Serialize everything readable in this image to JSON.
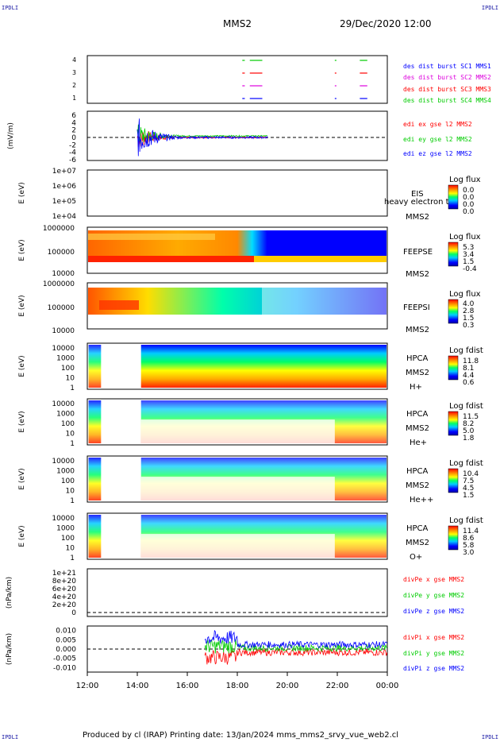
{
  "corners": {
    "tl": "IPDLI",
    "tr": "IPDLI",
    "bl": "IPDLI",
    "br": "IPDLI"
  },
  "header": {
    "spacecraft": "MMS2",
    "datetime": "29/Dec/2020 12:00"
  },
  "footer": {
    "text": "Produced by cl (IRAP)   Printing date: 13/Jan/2024   mms_mms2_srvy_vue_web2.cl"
  },
  "x_ticks": [
    "12:00",
    "14:00",
    "16:00",
    "18:00",
    "20:00",
    "22:00",
    "00:00"
  ],
  "colors": {
    "red": "#ff0000",
    "magenta": "#dd00dd",
    "green": "#00cc00",
    "blue": "#0000ff"
  },
  "chart_data": [
    {
      "type": "line",
      "panel": "burst",
      "yticks": [
        "1",
        "2",
        "3",
        "4"
      ],
      "series": [
        {
          "name": "des dist burst SC1 MMS1",
          "color": "green",
          "intervals": [
            [
              18.2,
              18.3
            ],
            [
              18.5,
              19.0
            ],
            [
              21.9,
              21.95
            ],
            [
              22.9,
              23.2
            ]
          ]
        },
        {
          "name": "des dist burst SC2 MMS2",
          "color": "red",
          "intervals": [
            [
              18.2,
              18.3
            ],
            [
              18.5,
              19.0
            ],
            [
              21.9,
              21.95
            ],
            [
              22.9,
              23.2
            ]
          ]
        },
        {
          "name": "des dist burst SC3 MMS3",
          "color": "magenta",
          "intervals": [
            [
              18.2,
              18.3
            ],
            [
              18.5,
              19.0
            ],
            [
              21.9,
              21.95
            ],
            [
              22.9,
              23.2
            ]
          ]
        },
        {
          "name": "des dist burst SC4 MMS4",
          "color": "blue",
          "intervals": [
            [
              18.2,
              18.3
            ],
            [
              18.5,
              19.0
            ],
            [
              21.9,
              21.95
            ],
            [
              22.9,
              23.2
            ]
          ]
        }
      ]
    },
    {
      "type": "line",
      "panel": "efield",
      "ylabel": "(mV/m)",
      "yticks": [
        "6",
        "4",
        "2",
        "0",
        "-2",
        "-4",
        "-6"
      ],
      "ylim": [
        -6,
        6
      ],
      "series": [
        {
          "name": "edi ex gse l2 MMS2",
          "color": "red"
        },
        {
          "name": "edi ey gse l2 MMS2",
          "color": "green"
        },
        {
          "name": "edi ez gse l2 MMS2",
          "color": "blue"
        }
      ],
      "active_range": [
        14.0,
        19.2
      ]
    },
    {
      "type": "heatmap",
      "panel": "eis",
      "ylabel": "E (eV)",
      "yticks": [
        "1e+07",
        "1e+06",
        "1e+05",
        "1e+04"
      ],
      "labels": [
        "EIS",
        "heavy electron tof",
        "MMS2"
      ],
      "cbar_title": "Log flux",
      "cbar_ticks": [
        "0.0",
        "0.0",
        "0.0",
        "0.0"
      ]
    },
    {
      "type": "heatmap",
      "panel": "feepse",
      "ylabel": "E (eV)",
      "yticks": [
        "1000000",
        "100000",
        "10000"
      ],
      "labels": [
        "FEEPSE",
        "MMS2"
      ],
      "cbar_title": "Log flux",
      "cbar_ticks": [
        "5.3",
        "3.4",
        "1.5",
        "-0.4"
      ]
    },
    {
      "type": "heatmap",
      "panel": "feepsi",
      "ylabel": "E (eV)",
      "yticks": [
        "1000000",
        "100000",
        "10000"
      ],
      "labels": [
        "FEEPSI",
        "MMS2"
      ],
      "cbar_title": "Log flux",
      "cbar_ticks": [
        "4.0",
        "2.8",
        "1.5",
        "0.3"
      ]
    },
    {
      "type": "heatmap",
      "panel": "hpca_h",
      "ylabel": "E (eV)",
      "yticks": [
        "10000",
        "1000",
        "100",
        "10",
        "1"
      ],
      "labels": [
        "HPCA",
        "MMS2",
        "H+"
      ],
      "cbar_title": "Log fdist",
      "cbar_ticks": [
        "11.8",
        "8.1",
        "4.4",
        "0.6"
      ]
    },
    {
      "type": "heatmap",
      "panel": "hpca_he",
      "ylabel": "E (eV)",
      "yticks": [
        "10000",
        "1000",
        "100",
        "10",
        "1"
      ],
      "labels": [
        "HPCA",
        "MMS2",
        "He+"
      ],
      "cbar_title": "Log fdist",
      "cbar_ticks": [
        "11.5",
        "8.2",
        "5.0",
        "1.8"
      ]
    },
    {
      "type": "heatmap",
      "panel": "hpca_hepp",
      "ylabel": "E (eV)",
      "yticks": [
        "10000",
        "1000",
        "100",
        "10",
        "1"
      ],
      "labels": [
        "HPCA",
        "MMS2",
        "He++"
      ],
      "cbar_title": "Log fdist",
      "cbar_ticks": [
        "10.4",
        "7.5",
        "4.5",
        "1.5"
      ]
    },
    {
      "type": "heatmap",
      "panel": "hpca_o",
      "ylabel": "E (eV)",
      "yticks": [
        "10000",
        "1000",
        "100",
        "10",
        "1"
      ],
      "labels": [
        "HPCA",
        "MMS2",
        "O+"
      ],
      "cbar_title": "Log fdist",
      "cbar_ticks": [
        "11.4",
        "8.6",
        "5.8",
        "3.0"
      ]
    },
    {
      "type": "line",
      "panel": "divpe",
      "ylabel": "(nPa/km)",
      "yticks": [
        "1e+21",
        "8e+20",
        "6e+20",
        "4e+20",
        "2e+20",
        "0"
      ],
      "ylim": [
        0,
        1.1e+21
      ],
      "series": [
        {
          "name": "divPe x gse MMS2",
          "color": "red"
        },
        {
          "name": "divPe y gse MMS2",
          "color": "green"
        },
        {
          "name": "divPe z gse MMS2",
          "color": "blue"
        }
      ]
    },
    {
      "type": "line",
      "panel": "divpi",
      "ylabel": "(nPa/km)",
      "yticks": [
        "0.010",
        "0.005",
        "0.000",
        "-0.005",
        "-0.010"
      ],
      "ylim": [
        -0.012,
        0.012
      ],
      "series": [
        {
          "name": "divPi x gse MMS2",
          "color": "red"
        },
        {
          "name": "divPi y gse MMS2",
          "color": "green"
        },
        {
          "name": "divPi z gse MMS2",
          "color": "blue"
        }
      ],
      "active_range": [
        16.7,
        24.0
      ]
    }
  ]
}
